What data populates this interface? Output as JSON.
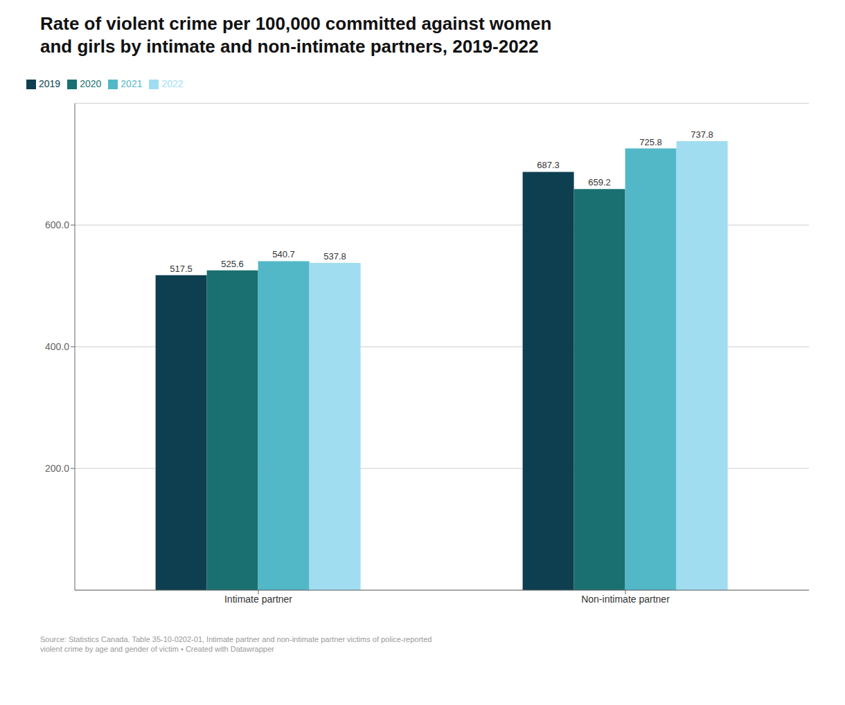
{
  "chart_data": {
    "type": "bar",
    "title": "Rate of violent crime per 100,000 committed against women\nand girls by intimate and non-intimate partners, 2019-2022",
    "categories": [
      "Intimate partner",
      "Non-intimate partner"
    ],
    "series": [
      {
        "name": "2019",
        "color": "#0d3f50",
        "values": [
          517.5,
          687.3
        ]
      },
      {
        "name": "2020",
        "color": "#1a7070",
        "values": [
          525.6,
          659.2
        ]
      },
      {
        "name": "2021",
        "color": "#52b8c8",
        "values": [
          540.7,
          725.8
        ]
      },
      {
        "name": "2022",
        "color": "#a0ddf0",
        "values": [
          537.8,
          737.8
        ]
      }
    ],
    "ylim": [
      0,
      800
    ],
    "yticks": [
      {
        "value": 200,
        "label": "200.0"
      },
      {
        "value": 400,
        "label": "400.0"
      },
      {
        "value": 600,
        "label": "600.0"
      }
    ],
    "grid": true,
    "legend": "top left",
    "data_labels": true,
    "annotations": [
      "Source: Statistics Canada. Table 35-10-0202-01, Intimate partner and non-intimate partner victims of police-reported\nviolent crime by age and gender of victim • Created with Datawrapper"
    ]
  }
}
